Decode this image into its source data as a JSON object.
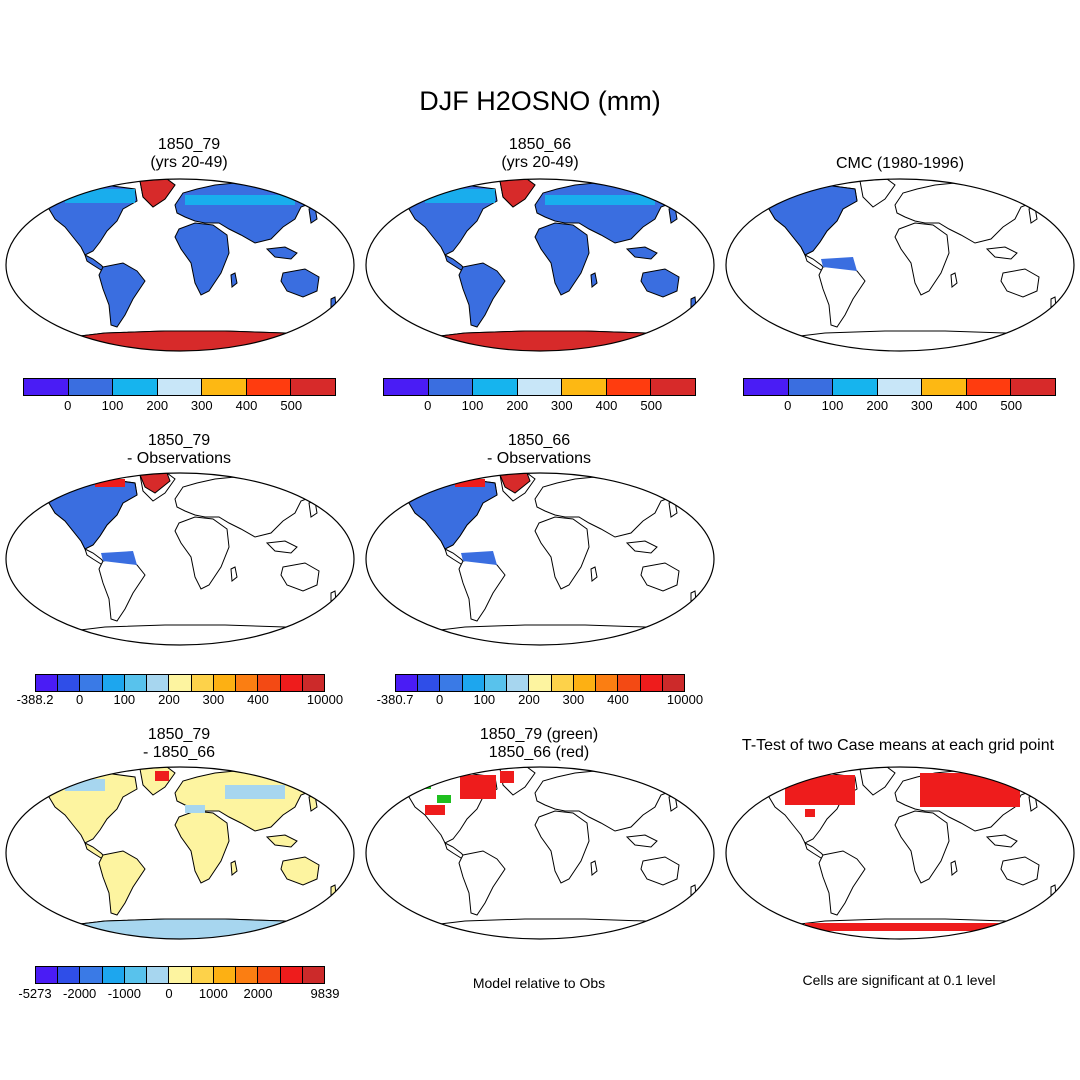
{
  "title": "DJF H2OSNO (mm)",
  "panels": {
    "p1": {
      "line1": "1850_79",
      "line2": "(yrs 20-49)"
    },
    "p2": {
      "line1": "1850_66",
      "line2": "(yrs 20-49)"
    },
    "p3": {
      "line1": "CMC (1980-1996)"
    },
    "p4": {
      "line1": "1850_79",
      "line2": "- Observations"
    },
    "p5": {
      "line1": "1850_66",
      "line2": "- Observations"
    },
    "p6": {
      "line1": "1850_79",
      "line2": "- 1850_66"
    },
    "p7": {
      "line1": "1850_79 (green)",
      "line2": "1850_66 (red)"
    },
    "p8": {
      "line1": "T-Test of two Case means at each grid point"
    }
  },
  "colorbars": {
    "abs": {
      "colors": [
        "#4a1cf5",
        "#3a6ee0",
        "#16b4ee",
        "#c8e6f8",
        "#fdb813",
        "#ff3c0f",
        "#d72a2a"
      ],
      "labels": [
        "0",
        "100",
        "200",
        "300",
        "400",
        "500"
      ]
    },
    "diff79": {
      "colors": [
        "#4a1cf5",
        "#2f4ee8",
        "#3a7ae6",
        "#1da6ee",
        "#58c2ec",
        "#a7d6ef",
        "#fdf4a0",
        "#fdd24a",
        "#fdb013",
        "#fb7e12",
        "#f34a14",
        "#ee1c1c",
        "#cc2a2a"
      ],
      "labels": [
        "-388.2",
        "0",
        "100",
        "200",
        "300",
        "400",
        "10000"
      ]
    },
    "diff66": {
      "colors": [
        "#4a1cf5",
        "#2f4ee8",
        "#3a7ae6",
        "#1da6ee",
        "#58c2ec",
        "#a7d6ef",
        "#fdf4a0",
        "#fdd24a",
        "#fdb013",
        "#fb7e12",
        "#f34a14",
        "#ee1c1c",
        "#cc2a2a"
      ],
      "labels": [
        "-380.7",
        "0",
        "100",
        "200",
        "300",
        "400",
        "10000"
      ]
    },
    "case": {
      "colors": [
        "#4a1cf5",
        "#2f4ee8",
        "#3a7ae6",
        "#1da6ee",
        "#58c2ec",
        "#a7d6ef",
        "#fdf4a0",
        "#fdd24a",
        "#fdb013",
        "#fb7e12",
        "#f34a14",
        "#ee1c1c",
        "#cc2a2a"
      ],
      "labels": [
        "-5273",
        "-2000",
        "-1000",
        "0",
        "1000",
        "2000",
        "9839"
      ]
    }
  },
  "notes": {
    "model_rel": "Model relative to Obs",
    "cells_sig": "Cells are significant at 0.1 level"
  }
}
